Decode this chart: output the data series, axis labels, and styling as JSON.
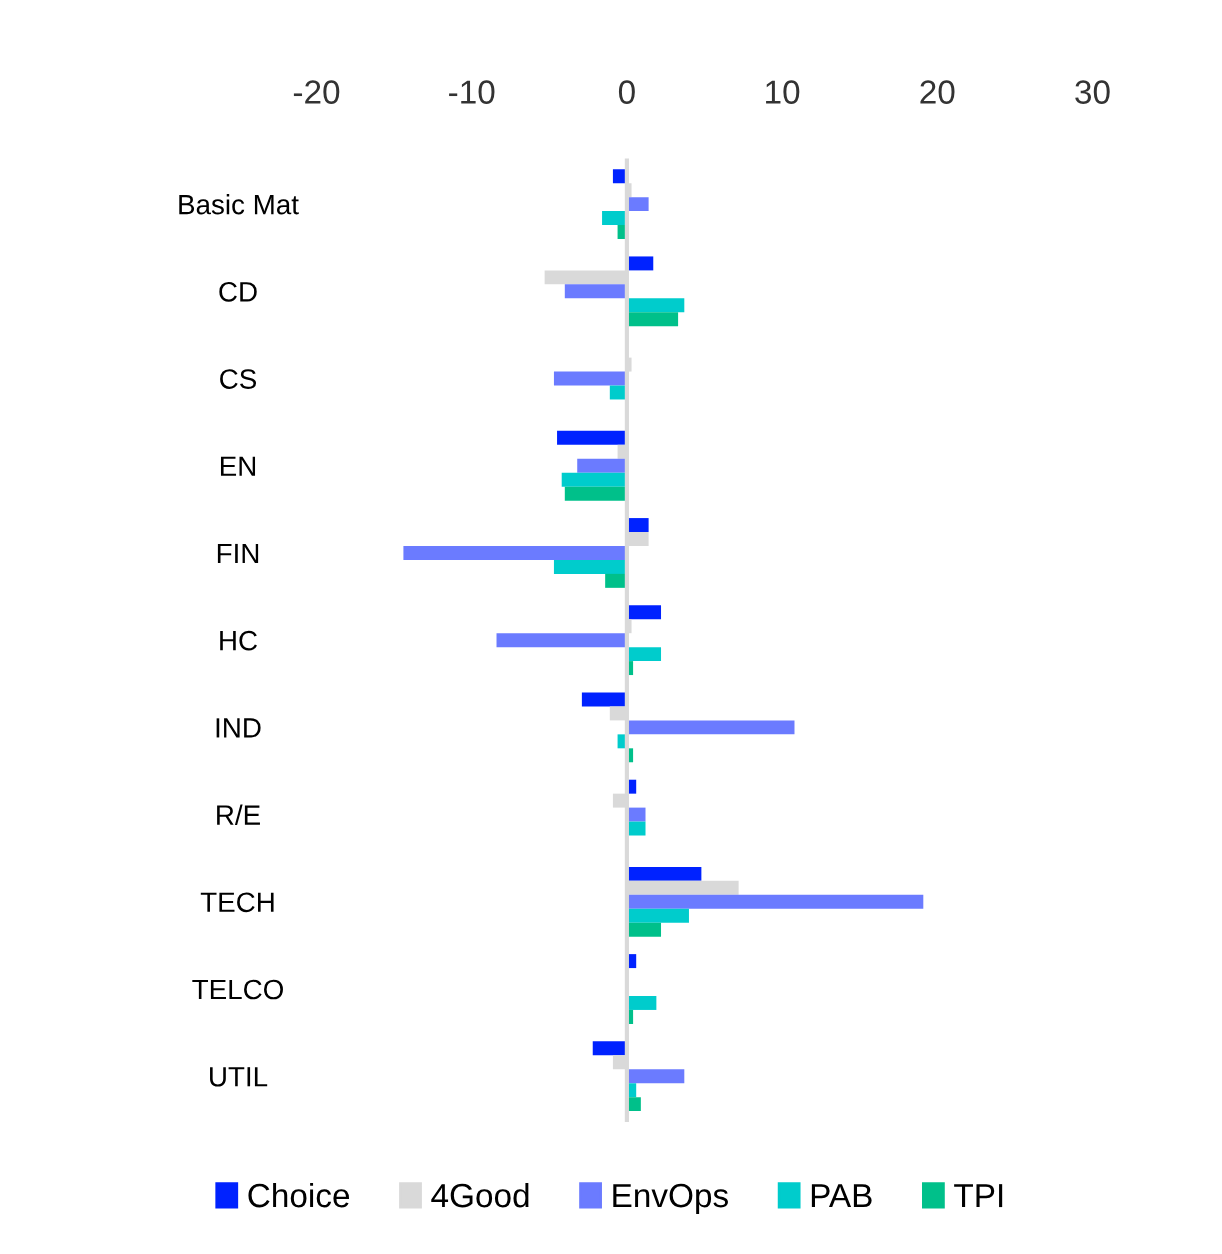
{
  "chart_data": {
    "type": "bar",
    "orientation": "horizontal",
    "categories": [
      "Basic Mat",
      "CD",
      "CS",
      "EN",
      "FIN",
      "HC",
      "IND",
      "R/E",
      "TECH",
      "TELCO",
      "UTIL"
    ],
    "series": [
      {
        "name": "Choice",
        "color": "#0022ff",
        "values": [
          -0.9,
          1.7,
          0,
          -4.5,
          1.4,
          2.2,
          -2.9,
          0.6,
          4.8,
          0.6,
          -2.2
        ]
      },
      {
        "name": "4Good",
        "color": "#d9d9d9",
        "values": [
          0.3,
          -5.3,
          0.3,
          -0.6,
          1.4,
          0.3,
          -1.1,
          -0.9,
          7.2,
          0,
          -0.9
        ]
      },
      {
        "name": "EnvOps",
        "color": "#6b7bff",
        "values": [
          1.4,
          -4.0,
          -4.7,
          -3.2,
          -14.4,
          -8.4,
          10.8,
          1.2,
          19.1,
          0,
          3.7
        ]
      },
      {
        "name": "PAB",
        "color": "#00cccc",
        "values": [
          -1.6,
          3.7,
          -1.1,
          -4.2,
          -4.7,
          2.2,
          -0.6,
          1.2,
          4.0,
          1.9,
          0.6
        ]
      },
      {
        "name": "TPI",
        "color": "#00c08a",
        "values": [
          -0.6,
          3.3,
          0,
          -4.0,
          -1.4,
          0.4,
          0.4,
          0,
          2.2,
          0.4,
          0.9
        ]
      }
    ],
    "xlim": [
      -20,
      30
    ],
    "xticks": [
      -20,
      -10,
      0,
      10,
      20,
      30
    ],
    "legend": "bottom"
  }
}
